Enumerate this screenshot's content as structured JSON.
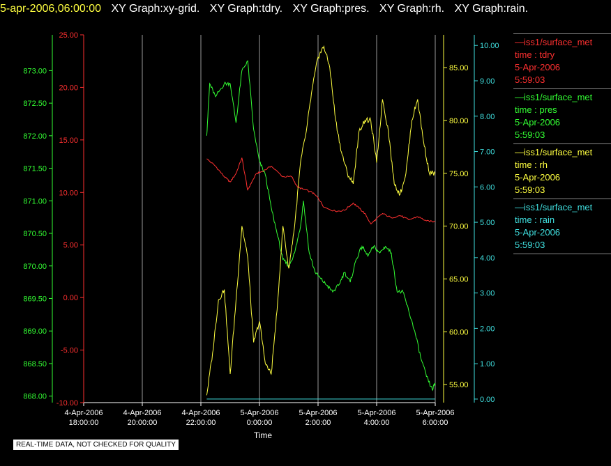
{
  "header": {
    "timestamp": "5-apr-2006,06:00:00",
    "tabs": [
      "XY Graph:xy-grid.",
      "XY Graph:tdry.",
      "XY Graph:pres.",
      "XY Graph:rh.",
      "XY Graph:rain."
    ]
  },
  "notice": "REAL-TIME DATA, NOT CHECKED FOR QUALITY",
  "legend": [
    {
      "source": "—iss1/surface_met",
      "field": "time : tdry",
      "date": "5-Apr-2006",
      "time": "5:59:03",
      "color": "#ff3030"
    },
    {
      "source": "—iss1/surface_met",
      "field": "time : pres",
      "date": "5-Apr-2006",
      "time": "5:59:03",
      "color": "#33ff33"
    },
    {
      "source": "—iss1/surface_met",
      "field": "time : rh",
      "date": "5-Apr-2006",
      "time": "5:59:03",
      "color": "#ffff40"
    },
    {
      "source": "—iss1/surface_met",
      "field": "time : rain",
      "date": "5-Apr-2006",
      "time": "5:59:03",
      "color": "#40e0e0"
    }
  ],
  "chart_data": {
    "type": "line",
    "xlabel": "Time",
    "x_ticks": [
      {
        "date": "4-Apr-2006",
        "time": "18:00:00",
        "hours": -12
      },
      {
        "date": "4-Apr-2006",
        "time": "20:00:00",
        "hours": -10
      },
      {
        "date": "4-Apr-2006",
        "time": "22:00:00",
        "hours": -8
      },
      {
        "date": "5-Apr-2006",
        "time": "0:00:00",
        "hours": -6
      },
      {
        "date": "5-Apr-2006",
        "time": "2:00:00",
        "hours": -4
      },
      {
        "date": "5-Apr-2006",
        "time": "4:00:00",
        "hours": -2
      },
      {
        "date": "5-Apr-2006",
        "time": "6:00:00",
        "hours": 0
      }
    ],
    "xlim_hours": [
      -12,
      0
    ],
    "grid": "vertical",
    "axes": {
      "pres": {
        "ticks": [
          "868.00",
          "868.50",
          "869.00",
          "869.50",
          "870.00",
          "870.50",
          "871.00",
          "871.50",
          "872.00",
          "872.50",
          "873.00"
        ],
        "ylim": [
          867.9,
          873.55
        ],
        "color": "#33ff33"
      },
      "tdry": {
        "ticks": [
          "-10.00",
          "-5.00",
          "0.00",
          "5.00",
          "10.00",
          "15.00",
          "20.00",
          "25.00"
        ],
        "ylim": [
          -10,
          25
        ],
        "color": "#ff3030"
      },
      "rh": {
        "ticks": [
          "55.00",
          "60.00",
          "65.00",
          "70.00",
          "75.00",
          "80.00",
          "85.00"
        ],
        "ylim": [
          53.3,
          88.1
        ],
        "color": "#ffff40"
      },
      "rain": {
        "ticks": [
          "0.00",
          "1.00",
          "2.00",
          "3.00",
          "4.00",
          "5.00",
          "6.00",
          "7.00",
          "8.00",
          "9.00",
          "10.00"
        ],
        "ylim": [
          -0.1,
          10.3
        ],
        "color": "#40e0e0"
      }
    },
    "series": [
      {
        "name": "tdry",
        "axis": "tdry",
        "color": "#ff3030",
        "x": [
          -7.8,
          -7.5,
          -7.2,
          -7.0,
          -6.8,
          -6.6,
          -6.4,
          -6.3,
          -6.1,
          -5.9,
          -5.6,
          -5.2,
          -4.9,
          -4.7,
          -4.5,
          -4.2,
          -4.0,
          -3.8,
          -3.4,
          -3.1,
          -2.8,
          -2.6,
          -2.4,
          -2.2,
          -2.0,
          -1.8,
          -1.5,
          -1.2,
          -0.9,
          -0.6,
          -0.3,
          0.0
        ],
        "y": [
          13.2,
          12.5,
          11.5,
          11.0,
          11.8,
          13.3,
          10.2,
          10.8,
          11.8,
          12.0,
          12.5,
          11.5,
          11.5,
          10.5,
          10.3,
          10.0,
          9.5,
          8.6,
          8.2,
          8.3,
          9.0,
          8.5,
          8.0,
          7.0,
          7.5,
          8.0,
          7.6,
          7.8,
          7.4,
          7.7,
          7.3,
          7.2
        ]
      },
      {
        "name": "pres",
        "axis": "pres",
        "color": "#33ff33",
        "x": [
          -7.8,
          -7.7,
          -7.5,
          -7.2,
          -7.0,
          -6.8,
          -6.6,
          -6.4,
          -6.2,
          -6.0,
          -5.8,
          -5.6,
          -5.4,
          -5.2,
          -5.0,
          -4.8,
          -4.6,
          -4.5,
          -4.3,
          -4.1,
          -3.9,
          -3.7,
          -3.5,
          -3.3,
          -3.1,
          -2.9,
          -2.7,
          -2.5,
          -2.3,
          -2.1,
          -1.9,
          -1.7,
          -1.5,
          -1.3,
          -1.1,
          -0.9,
          -0.7,
          -0.5,
          -0.3,
          -0.1,
          0.0
        ],
        "y": [
          872.0,
          872.8,
          872.6,
          872.8,
          872.8,
          872.2,
          873.0,
          873.15,
          872.1,
          871.6,
          871.4,
          870.9,
          870.5,
          870.1,
          870.0,
          870.2,
          870.6,
          871.0,
          870.2,
          869.9,
          869.8,
          869.7,
          869.6,
          869.7,
          869.9,
          869.75,
          870.1,
          870.3,
          870.15,
          870.3,
          870.2,
          870.3,
          870.2,
          869.6,
          869.6,
          869.3,
          869.0,
          868.6,
          868.3,
          868.1,
          868.2
        ]
      },
      {
        "name": "rh",
        "axis": "rh",
        "color": "#ffff40",
        "x": [
          -7.8,
          -7.6,
          -7.4,
          -7.2,
          -7.0,
          -6.8,
          -6.6,
          -6.4,
          -6.2,
          -6.0,
          -5.8,
          -5.6,
          -5.4,
          -5.2,
          -5.0,
          -4.8,
          -4.6,
          -4.4,
          -4.2,
          -4.0,
          -3.8,
          -3.6,
          -3.4,
          -3.2,
          -3.0,
          -2.8,
          -2.6,
          -2.4,
          -2.2,
          -2.0,
          -1.8,
          -1.6,
          -1.4,
          -1.2,
          -1.0,
          -0.8,
          -0.6,
          -0.4,
          -0.2,
          0.0
        ],
        "y": [
          54.0,
          58.0,
          63.0,
          64.0,
          56.0,
          63.0,
          70.0,
          67.0,
          59.0,
          61.0,
          57.0,
          56.0,
          62.0,
          70.0,
          66.0,
          70.0,
          76.0,
          79.0,
          83.0,
          86.0,
          87.0,
          85.0,
          80.0,
          77.0,
          75.0,
          74.0,
          79.0,
          80.0,
          80.0,
          76.0,
          82.0,
          79.0,
          74.0,
          73.0,
          75.0,
          80.0,
          82.0,
          78.0,
          75.0,
          75.0
        ]
      },
      {
        "name": "rain",
        "axis": "rain",
        "color": "#40e0e0",
        "x": [
          -7.8,
          0.0
        ],
        "y": [
          0.0,
          0.0
        ]
      }
    ]
  }
}
